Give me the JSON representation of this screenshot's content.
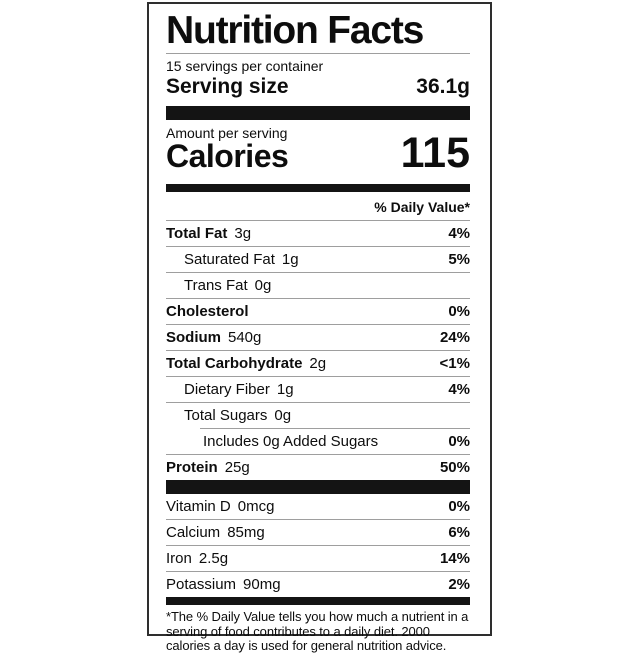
{
  "label": {
    "title": "Nutrition Facts",
    "servings_per_container": "15 servings per container",
    "serving_size_label": "Serving size",
    "serving_size_value": "36.1g",
    "amount_per_serving": "Amount per serving",
    "calories_label": "Calories",
    "calories_value": "115",
    "daily_value_header": "% Daily Value*",
    "nutrients": [
      {
        "name": "Total Fat",
        "amount": "3g",
        "dv": "4%",
        "emphasis": true,
        "indent": 0
      },
      {
        "name": "Saturated Fat",
        "amount": "1g",
        "dv": "5%",
        "emphasis": false,
        "indent": 1
      },
      {
        "name": "Trans Fat",
        "amount": "0g",
        "dv": "",
        "emphasis": false,
        "indent": 1
      },
      {
        "name": "Cholesterol",
        "amount": "",
        "dv": "0%",
        "emphasis": true,
        "indent": 0
      },
      {
        "name": "Sodium",
        "amount": "540g",
        "dv": "24%",
        "emphasis": true,
        "indent": 0
      },
      {
        "name": "Total Carbohydrate",
        "amount": "2g",
        "dv": "<1%",
        "emphasis": true,
        "indent": 0
      },
      {
        "name": "Dietary Fiber",
        "amount": "1g",
        "dv": "4%",
        "emphasis": false,
        "indent": 1
      },
      {
        "name": "Total Sugars",
        "amount": "0g",
        "dv": "",
        "emphasis": false,
        "indent": 1,
        "indented_rule_below": true
      },
      {
        "name": "Includes 0g Added Sugars",
        "amount": "",
        "dv": "0%",
        "emphasis": false,
        "indent": 2
      },
      {
        "name": "Protein",
        "amount": "25g",
        "dv": "50%",
        "emphasis": true,
        "indent": 0
      }
    ],
    "micronutrients": [
      {
        "name": "Vitamin D",
        "amount": "0mcg",
        "dv": "0%"
      },
      {
        "name": "Calcium",
        "amount": "85mg",
        "dv": "6%"
      },
      {
        "name": "Iron",
        "amount": "2.5g",
        "dv": "14%"
      },
      {
        "name": "Potassium",
        "amount": "90mg",
        "dv": "2%"
      }
    ],
    "footnote": "*The % Daily Value tells you how much a nutrient in a serving of food contributes to a daily diet. 2000 calories a day is used for general nutrition advice."
  },
  "colors": {
    "background": "#ffffff",
    "text": "#0d0d0d",
    "section_bar": "#141414",
    "hairline": "#9e9e9e",
    "border": "#2e2e2e"
  }
}
